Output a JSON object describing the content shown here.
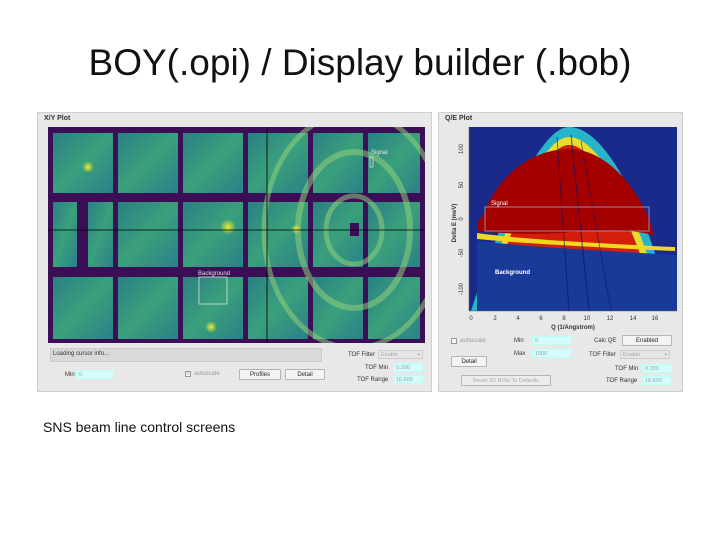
{
  "slide": {
    "title": "BOY(.opi) / Display builder (.bob)",
    "caption": "SNS beam line control screens"
  },
  "xy_plot": {
    "panel_title": "X/Y Plot",
    "signal_label": "Signal",
    "background_label": "Background",
    "status_text": "Loading cursor info...",
    "min_label": "Min",
    "min_value": "0",
    "autoscale_label": "autoscale",
    "autoscale_checked": true,
    "profiles_button": "Profiles",
    "detail_button": "Detail",
    "tof_filter_label": "TOF Filter",
    "tof_filter_value": "Enable",
    "tof_min_label": "TOF Min",
    "tof_min_value": "0.200",
    "tof_range_label": "TOF Range",
    "tof_range_value": "16.600"
  },
  "qe_plot": {
    "panel_title": "Q/E Plot",
    "signal_label": "Signal",
    "background_label": "Background",
    "x_axis_label": "Q (1/Angstrom)",
    "y_axis_label": "Delta E (meV)",
    "x_ticks": [
      "0",
      "2",
      "4",
      "6",
      "8",
      "10",
      "12",
      "14",
      "16"
    ],
    "y_ticks": [
      "100",
      "50",
      "0",
      "-50",
      "-100"
    ],
    "autoscale_label": "autoscale",
    "autoscale_checked": false,
    "detail_button": "Detail",
    "min_label": "Min",
    "min_value": "0",
    "max_label": "Max",
    "max_value": "1000",
    "calc_qe_label": "Calc QE",
    "calc_qe_value": "Enabled",
    "tof_filter_label": "TOF Filter",
    "tof_filter_value": "Enable",
    "reset_button": "Reset 2D ROIs To Defaults",
    "tof_min_label": "TOF Min",
    "tof_min_value": "0.200",
    "tof_range_label": "TOF Range",
    "tof_range_value": "16.600"
  },
  "colors": {
    "detector_frame": "#3b0f55",
    "detector_fill": "#2f8f86",
    "hot_spot": "#d8e22a",
    "qe_background": "#1a2a8a",
    "qe_red": "#a50000",
    "field_cyan": "#d6fbff"
  },
  "icons": {
    "checkbox_checked": "checkmark-icon",
    "dropdown": "chevron-down-icon"
  }
}
